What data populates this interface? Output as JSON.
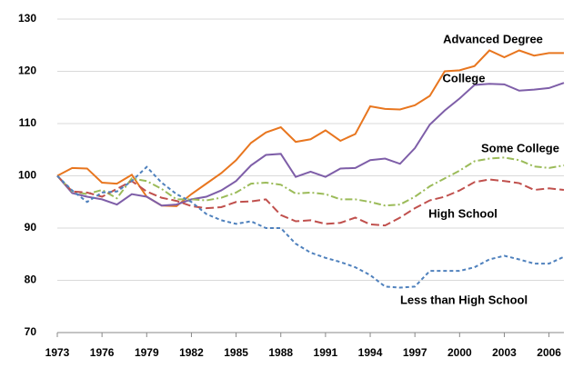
{
  "chart_data": {
    "type": "line",
    "x": [
      1973,
      1974,
      1975,
      1976,
      1977,
      1978,
      1979,
      1980,
      1981,
      1982,
      1983,
      1984,
      1985,
      1986,
      1987,
      1988,
      1989,
      1990,
      1991,
      1992,
      1993,
      1994,
      1995,
      1996,
      1997,
      1998,
      1999,
      2000,
      2001,
      2002,
      2003,
      2004,
      2005,
      2006,
      2007
    ],
    "xlim": [
      1973,
      2007
    ],
    "xticks": [
      1973,
      1976,
      1979,
      1982,
      1985,
      1988,
      1991,
      1994,
      1997,
      2000,
      2003,
      2006
    ],
    "ylim": [
      70,
      130
    ],
    "yticks": [
      70,
      80,
      90,
      100,
      110,
      120,
      130
    ],
    "grid": true,
    "series": [
      {
        "name": "Advanced Degree",
        "color": "#e8761f",
        "dash": "none",
        "values": [
          100,
          101.5,
          101.4,
          98.7,
          98.5,
          100.2,
          96,
          94.3,
          94.2,
          96.5,
          98.5,
          100.5,
          103,
          106.3,
          108.3,
          109.3,
          106.5,
          107,
          108.7,
          106.7,
          108,
          113.3,
          112.8,
          112.7,
          113.5,
          115.3,
          120,
          120.2,
          121,
          124,
          122.7,
          124,
          123,
          123.5,
          123.5
        ]
      },
      {
        "name": "College",
        "color": "#7e5ea8",
        "dash": "none",
        "values": [
          100,
          96.7,
          96,
          95.5,
          94.5,
          96.5,
          96,
          94.3,
          94.5,
          95.5,
          96,
          97.2,
          99,
          102,
          104,
          104.2,
          99.8,
          100.8,
          99.8,
          101.4,
          101.5,
          103,
          103.3,
          102.3,
          105.3,
          109.8,
          112.5,
          114.8,
          117.4,
          117.6,
          117.5,
          116.3,
          116.5,
          116.8,
          117.8
        ]
      },
      {
        "name": "Some College",
        "color": "#9bbb59",
        "dash": "8 3 2 3",
        "values": [
          100,
          97,
          96.5,
          97.3,
          95.7,
          99.5,
          99,
          97.5,
          95.5,
          95.5,
          95.3,
          95.8,
          96.8,
          98.5,
          98.7,
          98.3,
          96.6,
          96.8,
          96.5,
          95.5,
          95.5,
          95,
          94.3,
          94.5,
          96,
          98,
          99.5,
          101,
          102.8,
          103.3,
          103.5,
          103,
          101.8,
          101.5,
          102
        ]
      },
      {
        "name": "High School",
        "color": "#c0504d",
        "dash": "9 4",
        "values": [
          100,
          97,
          96.8,
          96,
          97.5,
          99,
          97,
          95.8,
          95.2,
          94.2,
          93.8,
          94,
          95,
          95.1,
          95.5,
          92.5,
          91.3,
          91.5,
          90.8,
          91,
          92,
          90.7,
          90.5,
          92,
          93.8,
          95.3,
          96,
          97.2,
          98.8,
          99.3,
          99,
          98.6,
          97.3,
          97.6,
          97.3
        ]
      },
      {
        "name": "Less than High School",
        "color": "#4f81bd",
        "dash": "4 3",
        "values": [
          100,
          97.2,
          95,
          96.8,
          97,
          99,
          101.7,
          98.7,
          96.5,
          95,
          92.7,
          91.5,
          90.8,
          91.3,
          90,
          90,
          87,
          85.3,
          84.3,
          83.5,
          82.5,
          81,
          78.8,
          78.6,
          78.8,
          81.8,
          81.8,
          81.8,
          82.5,
          84,
          84.7,
          84,
          83.2,
          83.2,
          84.5
        ]
      }
    ]
  }
}
